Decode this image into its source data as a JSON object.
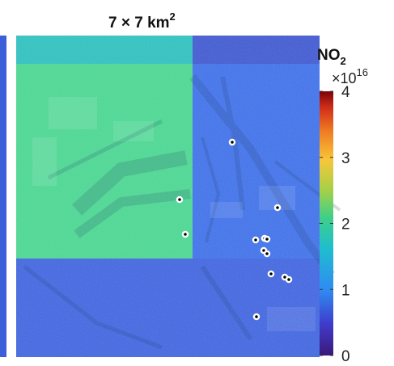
{
  "chart_data": {
    "type": "heatmap",
    "title": "7 × 7 km",
    "title_superscript": "2",
    "grid_km": 7,
    "colormap": "parula-like (dark blue → yellow → dark red)",
    "colorbar": {
      "label": "NO",
      "label_subscript": "2",
      "multiplier_base": "×10",
      "multiplier_exponent": "16",
      "min": 0,
      "max": 4,
      "ticks": [
        "0",
        "1",
        "2",
        "3",
        "4"
      ]
    },
    "cells": [
      {
        "name": "north-strip-west",
        "value": 1.3,
        "color": "#2cbfbd"
      },
      {
        "name": "north-strip-east",
        "value": 0.7,
        "color": "#3e57cf"
      },
      {
        "name": "northwest-cell",
        "value": 1.9,
        "color": "#48d590"
      },
      {
        "name": "northeast-cell",
        "value": 0.8,
        "color": "#3d6fe8"
      },
      {
        "name": "south-strip",
        "value": 0.75,
        "color": "#3e63de"
      }
    ],
    "left_edge_cell_color": "#3a5fd8",
    "site_markers": {
      "count": 13,
      "style": "black dot, white ring"
    }
  }
}
